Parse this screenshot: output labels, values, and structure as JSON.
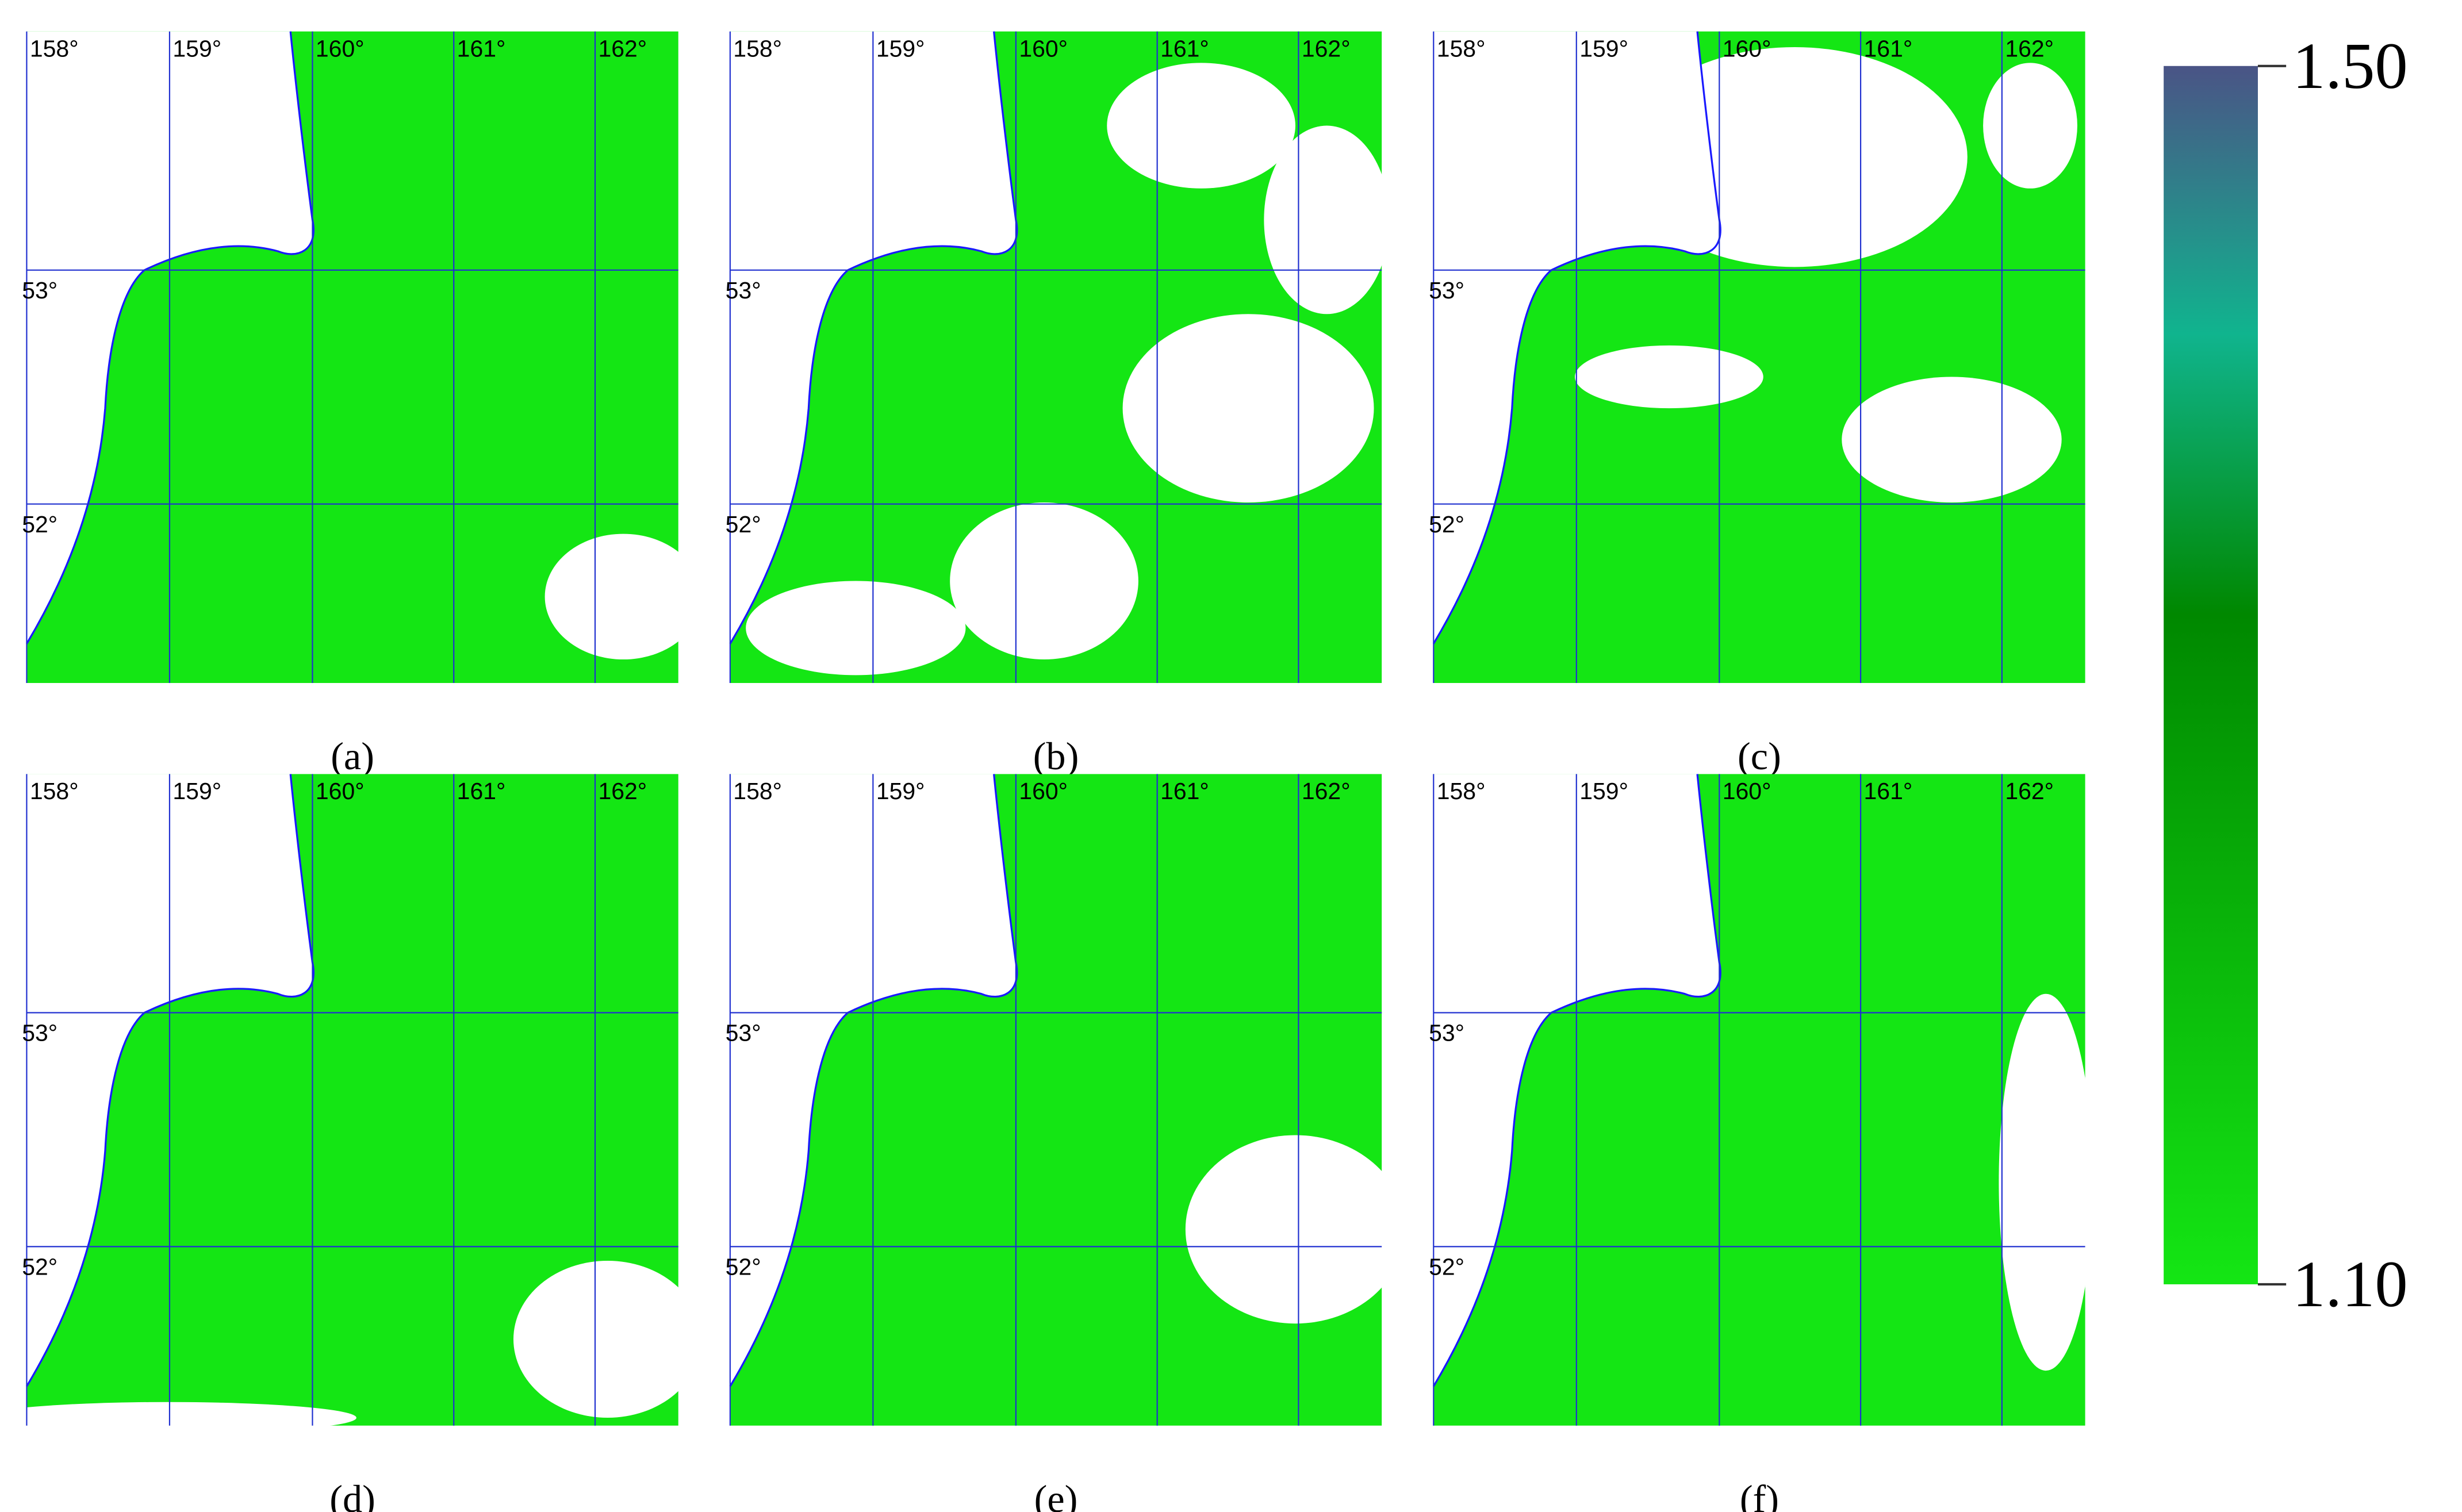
{
  "panels": [
    {
      "label": "(a)"
    },
    {
      "label": "(b)"
    },
    {
      "label": "(c)"
    },
    {
      "label": "(d)"
    },
    {
      "label": "(e)"
    },
    {
      "label": "(f)"
    }
  ],
  "lon_labels": [
    "158°",
    "159°",
    "160°",
    "161°",
    "162°"
  ],
  "lat_labels": [
    "53°",
    "52°"
  ],
  "colorbar": {
    "range": [
      1.1,
      1.5
    ],
    "ticks": [
      {
        "value": 1.5,
        "label": "1.50"
      },
      {
        "value": 1.1,
        "label": "1.10"
      }
    ]
  }
}
